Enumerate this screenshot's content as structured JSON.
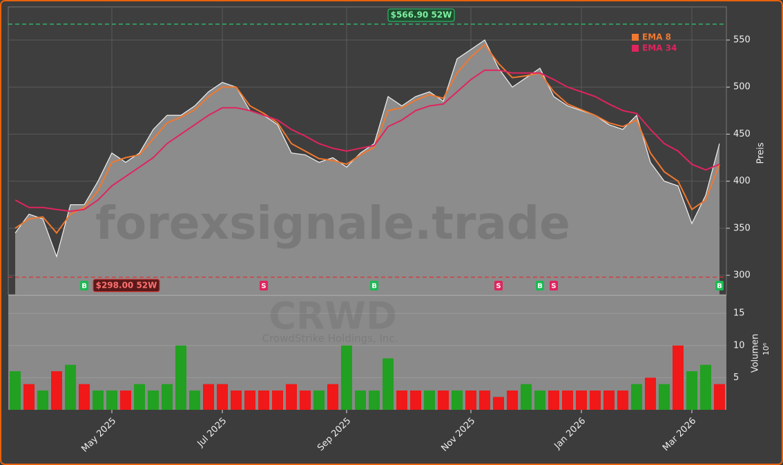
{
  "chart_data": {
    "type": "line",
    "watermark": "forexsignale.trade",
    "symbol": "CRWD",
    "company": "CrowdStrike Holdings, Inc.",
    "y_label": "Preis",
    "categories": [
      null,
      null,
      null,
      null,
      null,
      null,
      null,
      "May 2025",
      null,
      null,
      null,
      null,
      null,
      null,
      null,
      "Jul 2025",
      null,
      null,
      null,
      null,
      null,
      null,
      null,
      null,
      "Sep 2025",
      null,
      null,
      null,
      null,
      null,
      null,
      null,
      null,
      "Nov 2025",
      null,
      null,
      null,
      null,
      null,
      null,
      null,
      "Jan 2026",
      null,
      null,
      null,
      null,
      null,
      null,
      null,
      "Mar 2026",
      null,
      null
    ],
    "series": [
      {
        "name": "Close",
        "color": "#f2f2f2",
        "fill": "#8c8c8c",
        "values": [
          345,
          365,
          360,
          320,
          375,
          375,
          400,
          430,
          420,
          430,
          455,
          470,
          470,
          480,
          495,
          505,
          500,
          475,
          470,
          460,
          430,
          428,
          420,
          425,
          415,
          430,
          440,
          490,
          480,
          490,
          495,
          485,
          530,
          540,
          550,
          520,
          500,
          510,
          520,
          490,
          480,
          475,
          470,
          460,
          455,
          470,
          420,
          400,
          395,
          355,
          385,
          440
        ]
      },
      {
        "name": "EMA 8",
        "color": "#f07830",
        "values": [
          350,
          360,
          362,
          345,
          365,
          372,
          390,
          420,
          425,
          428,
          445,
          462,
          468,
          476,
          490,
          500,
          500,
          480,
          472,
          462,
          440,
          432,
          424,
          422,
          418,
          428,
          436,
          475,
          478,
          486,
          492,
          488,
          515,
          532,
          545,
          525,
          510,
          512,
          515,
          495,
          482,
          476,
          470,
          462,
          458,
          465,
          430,
          410,
          400,
          370,
          380,
          418
        ]
      },
      {
        "name": "EMA 34",
        "color": "#e0245e",
        "values": [
          380,
          372,
          372,
          370,
          368,
          370,
          380,
          395,
          405,
          415,
          425,
          440,
          450,
          460,
          470,
          478,
          478,
          475,
          470,
          465,
          455,
          448,
          440,
          435,
          432,
          435,
          438,
          458,
          465,
          475,
          480,
          482,
          495,
          508,
          518,
          518,
          515,
          515,
          515,
          508,
          500,
          495,
          490,
          482,
          475,
          472,
          455,
          440,
          432,
          418,
          412,
          418
        ]
      }
    ],
    "ylim": [
      279.5,
      585.2
    ],
    "yticks": [
      300,
      350,
      400,
      450,
      500,
      550
    ],
    "grid": true,
    "levels": [
      {
        "value": 566.9,
        "label": "$566.90 52W",
        "color": "#2ecc71"
      },
      {
        "value": 298,
        "label": "$298.00 52W",
        "color": "#e03030"
      }
    ],
    "signals": [
      {
        "text": "B",
        "category": 5,
        "color": "#1db954"
      },
      {
        "text": "S",
        "category": 18,
        "color": "#e0245e"
      },
      {
        "text": "B",
        "category": 26,
        "color": "#1db954"
      },
      {
        "text": "S",
        "category": 35,
        "color": "#e0245e"
      },
      {
        "text": "B",
        "category": 38,
        "color": "#1db954"
      },
      {
        "text": "S",
        "category": 39,
        "color": "#e0245e"
      },
      {
        "text": "B",
        "category": 51,
        "color": "#1db954"
      }
    ],
    "volume": {
      "y_label": "Volumen",
      "multiplier": "10⁶",
      "values": [
        6,
        4,
        3,
        6,
        7,
        4,
        3,
        3,
        3,
        4,
        3,
        4,
        10,
        3,
        4,
        4,
        3,
        3,
        3,
        3,
        4,
        3,
        3,
        4,
        10,
        3,
        3,
        8,
        3,
        3,
        3,
        3,
        3,
        3,
        3,
        2,
        3,
        4,
        3,
        3,
        3,
        3,
        3,
        3,
        3,
        4,
        5,
        4,
        10,
        6,
        7,
        4
      ],
      "colors": [
        "#22a022",
        "#f01818",
        "#22a022",
        "#f01818",
        "#22a022",
        "#f01818",
        "#22a022",
        "#22a022",
        "#f01818",
        "#22a022",
        "#22a022",
        "#22a022",
        "#22a022",
        "#22a022",
        "#f01818",
        "#f01818",
        "#f01818",
        "#f01818",
        "#f01818",
        "#f01818",
        "#f01818",
        "#f01818",
        "#22a022",
        "#f01818",
        "#22a022",
        "#22a022",
        "#22a022",
        "#22a022",
        "#f01818",
        "#f01818",
        "#22a022",
        "#f01818",
        "#22a022",
        "#f01818",
        "#f01818",
        "#f01818",
        "#f01818",
        "#22a022",
        "#22a022",
        "#f01818",
        "#f01818",
        "#f01818",
        "#f01818",
        "#f01818",
        "#f01818",
        "#22a022",
        "#f01818",
        "#22a022",
        "#f01818",
        "#22a022",
        "#22a022",
        "#f01818"
      ],
      "ylim": [
        0,
        17.6
      ],
      "yticks": [
        5,
        10,
        15
      ]
    }
  }
}
